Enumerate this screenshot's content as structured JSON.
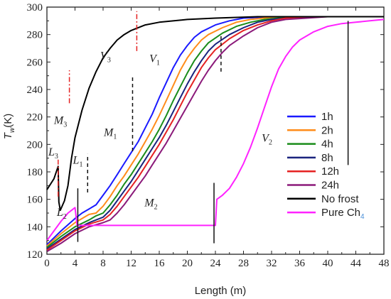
{
  "chart_data": {
    "type": "line",
    "xlabel": "Length (m)",
    "ylabel_main": "T",
    "ylabel_sub": "w",
    "ylabel_unit": "(K)",
    "xlim": [
      0,
      48
    ],
    "ylim": [
      120,
      300
    ],
    "x_ticks": [
      "0",
      "4",
      "8",
      "12",
      "16",
      "20",
      "24",
      "28",
      "32",
      "36",
      "40",
      "44",
      "48"
    ],
    "y_ticks": [
      "120",
      "140",
      "160",
      "180",
      "200",
      "220",
      "240",
      "260",
      "280",
      "300"
    ],
    "grid": false,
    "legend_position": "right",
    "series": [
      {
        "name": "1h",
        "color": "#1a1aff",
        "points": [
          [
            0,
            127
          ],
          [
            2,
            137
          ],
          [
            4,
            146
          ],
          [
            5,
            150
          ],
          [
            6,
            153
          ],
          [
            7,
            156
          ],
          [
            8,
            163
          ],
          [
            9,
            170
          ],
          [
            10,
            178
          ],
          [
            11,
            186
          ],
          [
            12,
            194
          ],
          [
            13,
            202
          ],
          [
            14,
            212
          ],
          [
            15,
            222
          ],
          [
            16,
            234
          ],
          [
            17,
            245
          ],
          [
            18,
            256
          ],
          [
            19,
            265
          ],
          [
            20,
            272
          ],
          [
            21,
            278
          ],
          [
            22,
            282
          ],
          [
            24,
            287
          ],
          [
            26,
            290
          ],
          [
            28,
            292
          ],
          [
            32,
            293
          ],
          [
            48,
            293
          ]
        ]
      },
      {
        "name": "2h",
        "color": "#ff8c1a",
        "points": [
          [
            0,
            126
          ],
          [
            2,
            135
          ],
          [
            4,
            143
          ],
          [
            6,
            149
          ],
          [
            7,
            150
          ],
          [
            8,
            155
          ],
          [
            9,
            162
          ],
          [
            10,
            170
          ],
          [
            11,
            177
          ],
          [
            12,
            185
          ],
          [
            13,
            193
          ],
          [
            14,
            202
          ],
          [
            15,
            211
          ],
          [
            16,
            221
          ],
          [
            17,
            232
          ],
          [
            18,
            243
          ],
          [
            19,
            254
          ],
          [
            20,
            263
          ],
          [
            21,
            270
          ],
          [
            22,
            276
          ],
          [
            23,
            280
          ],
          [
            25,
            285
          ],
          [
            27,
            289
          ],
          [
            29,
            291
          ],
          [
            33,
            293
          ],
          [
            48,
            293
          ]
        ]
      },
      {
        "name": "4h",
        "color": "#1a8c1a",
        "points": [
          [
            0,
            125
          ],
          [
            2,
            133
          ],
          [
            4,
            140
          ],
          [
            6,
            145
          ],
          [
            7,
            148
          ],
          [
            8,
            150
          ],
          [
            9,
            156
          ],
          [
            10,
            163
          ],
          [
            11,
            171
          ],
          [
            12,
            178
          ],
          [
            13,
            186
          ],
          [
            14,
            194
          ],
          [
            15,
            202
          ],
          [
            16,
            211
          ],
          [
            17,
            221
          ],
          [
            18,
            232
          ],
          [
            19,
            242
          ],
          [
            20,
            252
          ],
          [
            21,
            261
          ],
          [
            22,
            268
          ],
          [
            23,
            274
          ],
          [
            25,
            281
          ],
          [
            27,
            286
          ],
          [
            29,
            289
          ],
          [
            31,
            291
          ],
          [
            35,
            293
          ],
          [
            48,
            293
          ]
        ]
      },
      {
        "name": "8h",
        "color": "#1a237e",
        "points": [
          [
            0,
            124
          ],
          [
            2,
            131
          ],
          [
            4,
            138
          ],
          [
            6,
            143
          ],
          [
            8,
            147
          ],
          [
            9,
            152
          ],
          [
            10,
            159
          ],
          [
            11,
            166
          ],
          [
            12,
            173
          ],
          [
            13,
            181
          ],
          [
            14,
            189
          ],
          [
            15,
            197
          ],
          [
            16,
            205
          ],
          [
            17,
            214
          ],
          [
            18,
            224
          ],
          [
            19,
            234
          ],
          [
            20,
            244
          ],
          [
            21,
            253
          ],
          [
            22,
            261
          ],
          [
            23,
            268
          ],
          [
            24,
            273
          ],
          [
            26,
            280
          ],
          [
            28,
            285
          ],
          [
            30,
            289
          ],
          [
            32,
            291
          ],
          [
            36,
            293
          ],
          [
            48,
            293
          ]
        ]
      },
      {
        "name": "12h",
        "color": "#e52222",
        "points": [
          [
            0,
            123
          ],
          [
            2,
            130
          ],
          [
            4,
            137
          ],
          [
            6,
            142
          ],
          [
            8,
            145
          ],
          [
            9,
            149
          ],
          [
            10,
            155
          ],
          [
            11,
            162
          ],
          [
            12,
            169
          ],
          [
            13,
            176
          ],
          [
            14,
            184
          ],
          [
            15,
            192
          ],
          [
            16,
            200
          ],
          [
            17,
            209
          ],
          [
            18,
            218
          ],
          [
            19,
            228
          ],
          [
            20,
            238
          ],
          [
            21,
            247
          ],
          [
            22,
            256
          ],
          [
            23,
            263
          ],
          [
            24,
            269
          ],
          [
            26,
            277
          ],
          [
            28,
            283
          ],
          [
            30,
            287
          ],
          [
            32,
            290
          ],
          [
            34,
            292
          ],
          [
            38,
            293
          ],
          [
            48,
            293
          ]
        ]
      },
      {
        "name": "24h",
        "color": "#8b1a7a",
        "points": [
          [
            0,
            122
          ],
          [
            2,
            128
          ],
          [
            4,
            135
          ],
          [
            6,
            140
          ],
          [
            8,
            143
          ],
          [
            9,
            145
          ],
          [
            10,
            150
          ],
          [
            11,
            156
          ],
          [
            12,
            163
          ],
          [
            13,
            170
          ],
          [
            14,
            177
          ],
          [
            15,
            185
          ],
          [
            16,
            193
          ],
          [
            17,
            201
          ],
          [
            18,
            210
          ],
          [
            19,
            219
          ],
          [
            20,
            228
          ],
          [
            21,
            237
          ],
          [
            22,
            246
          ],
          [
            23,
            254
          ],
          [
            24,
            261
          ],
          [
            25,
            267
          ],
          [
            26,
            272
          ],
          [
            28,
            279
          ],
          [
            30,
            285
          ],
          [
            32,
            289
          ],
          [
            34,
            291
          ],
          [
            37,
            292
          ],
          [
            40,
            293
          ],
          [
            48,
            293
          ]
        ]
      },
      {
        "name": "No frost",
        "color": "#000000",
        "points": [
          [
            0,
            167
          ],
          [
            1,
            175
          ],
          [
            1.6,
            184
          ],
          [
            1.7,
            158
          ],
          [
            1.9,
            152
          ],
          [
            2.5,
            159
          ],
          [
            3,
            170
          ],
          [
            3.5,
            190
          ],
          [
            4,
            205
          ],
          [
            5,
            225
          ],
          [
            6,
            241
          ],
          [
            7,
            253
          ],
          [
            8,
            263
          ],
          [
            9,
            270
          ],
          [
            10,
            276
          ],
          [
            11,
            280
          ],
          [
            12,
            283
          ],
          [
            14,
            287
          ],
          [
            16,
            289
          ],
          [
            20,
            291
          ],
          [
            24,
            292
          ],
          [
            30,
            293
          ],
          [
            48,
            293
          ]
        ]
      },
      {
        "name": "Pure Ch4",
        "color": "#ff22ff",
        "points": [
          [
            0,
            130
          ],
          [
            1,
            137
          ],
          [
            2,
            144
          ],
          [
            3,
            150
          ],
          [
            4,
            154
          ],
          [
            4.3,
            141
          ],
          [
            24,
            141
          ],
          [
            24.2,
            160
          ],
          [
            25,
            163
          ],
          [
            26,
            168
          ],
          [
            27,
            176
          ],
          [
            28,
            186
          ],
          [
            29,
            198
          ],
          [
            30,
            212
          ],
          [
            31,
            227
          ],
          [
            32,
            242
          ],
          [
            33,
            255
          ],
          [
            34,
            264
          ],
          [
            35,
            271
          ],
          [
            36,
            276
          ],
          [
            38,
            282
          ],
          [
            40,
            286
          ],
          [
            42,
            288
          ],
          [
            44,
            289
          ],
          [
            46,
            290
          ],
          [
            48,
            291
          ]
        ]
      }
    ],
    "region_labels": [
      {
        "text": "V",
        "sub": "3",
        "x": 7.6,
        "y": 262
      },
      {
        "text": "V",
        "sub": "1",
        "x": 14.6,
        "y": 260
      },
      {
        "text": "M",
        "sub": "3",
        "x": 1.0,
        "y": 215
      },
      {
        "text": "M",
        "sub": "1",
        "x": 8.1,
        "y": 206
      },
      {
        "text": "V",
        "sub": "2",
        "x": 30.6,
        "y": 202
      },
      {
        "text": "L",
        "sub": "3",
        "x": 0.2,
        "y": 192
      },
      {
        "text": "L",
        "sub": "1",
        "x": 3.7,
        "y": 186
      },
      {
        "text": "M",
        "sub": "2",
        "x": 13.9,
        "y": 155
      },
      {
        "text": "L",
        "sub": "2",
        "x": 1.4,
        "y": 148
      }
    ],
    "markers": [
      {
        "style": "dash-red",
        "x": 1.6,
        "y0": 162,
        "y1": 189
      },
      {
        "style": "dash-red",
        "x": 3.2,
        "y0": 230,
        "y1": 254
      },
      {
        "style": "dash-red",
        "x": 12.8,
        "y0": 268,
        "y1": 297
      },
      {
        "style": "dash-black",
        "x": 5.8,
        "y0": 165,
        "y1": 193
      },
      {
        "style": "dash-black",
        "x": 12.2,
        "y0": 195,
        "y1": 250
      },
      {
        "style": "dash-black",
        "x": 24.8,
        "y0": 253,
        "y1": 280
      },
      {
        "style": "solid-black",
        "x": 4.4,
        "y0": 129,
        "y1": 168
      },
      {
        "style": "solid-black",
        "x": 23.8,
        "y0": 128,
        "y1": 172
      },
      {
        "style": "solid-black",
        "x": 42.9,
        "y0": 185,
        "y1": 290
      }
    ]
  }
}
